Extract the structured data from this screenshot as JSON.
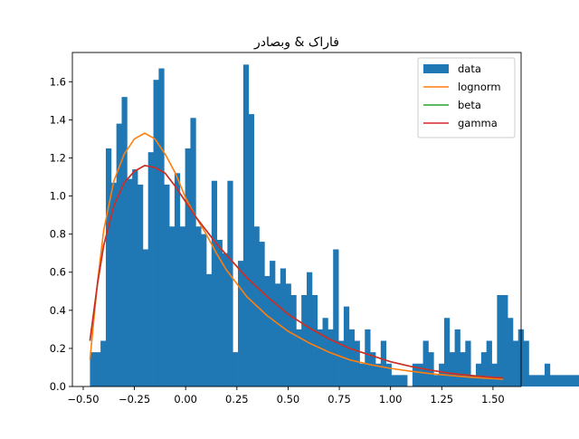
{
  "chart_data": {
    "type": "bar",
    "title": "فاراک & وبصادر",
    "xlabel": "",
    "ylabel": "",
    "xlim": [
      -0.5528,
      1.6372
    ],
    "ylim": [
      0,
      1.7535
    ],
    "xticks": [
      -0.5,
      -0.25,
      0.0,
      0.25,
      0.5,
      0.75,
      1.0,
      1.25,
      1.5
    ],
    "xtick_labels": [
      "−0.50",
      "−0.25",
      "0.00",
      "0.25",
      "0.50",
      "0.75",
      "1.00",
      "1.25",
      "1.50"
    ],
    "yticks": [
      0.0,
      0.2,
      0.4,
      0.6,
      0.8,
      1.0,
      1.2,
      1.4,
      1.6
    ],
    "ytick_labels": [
      "0.0",
      "0.2",
      "0.4",
      "0.6",
      "0.8",
      "1.0",
      "1.2",
      "1.4",
      "1.6"
    ],
    "grid": false,
    "legend_position": "top-right",
    "histogram": {
      "name": "data",
      "color": "#1f77b4",
      "bin_start": -0.467,
      "bin_width": 0.0258,
      "densities": [
        0.18,
        0.18,
        0.24,
        1.25,
        1.07,
        1.38,
        1.52,
        1.09,
        1.14,
        1.06,
        0.72,
        1.23,
        1.61,
        1.67,
        1.06,
        0.84,
        1.12,
        0.84,
        1.25,
        1.41,
        0.84,
        0.8,
        0.59,
        1.08,
        0.77,
        0.7,
        1.08,
        0.18,
        0.66,
        1.69,
        1.43,
        0.84,
        0.76,
        0.58,
        0.66,
        0.54,
        0.62,
        0.54,
        0.48,
        0.3,
        0.48,
        0.6,
        0.48,
        0.3,
        0.36,
        0.3,
        0.72,
        0.24,
        0.42,
        0.3,
        0.24,
        0.12,
        0.3,
        0.18,
        0.12,
        0.24,
        0.12,
        0.06,
        0.06,
        0.06,
        0.0,
        0.12,
        0.12,
        0.24,
        0.18,
        0.06,
        0.12,
        0.36,
        0.18,
        0.3,
        0.18,
        0.24,
        0.06,
        0.12,
        0.18,
        0.24,
        0.12,
        0.48,
        0.48,
        0.36,
        0.24,
        0.3,
        0.24,
        0.06,
        0.06,
        0.06,
        0.12,
        0.06,
        0.06,
        0.06,
        0.06,
        0.06,
        0.06,
        0.06,
        0.06,
        0.06
      ]
    },
    "series": [
      {
        "name": "lognorm",
        "color": "#ff7f0e",
        "x": [
          -0.467,
          -0.43,
          -0.4,
          -0.35,
          -0.3,
          -0.25,
          -0.2,
          -0.15,
          -0.1,
          -0.05,
          0.0,
          0.05,
          0.1,
          0.15,
          0.2,
          0.25,
          0.3,
          0.35,
          0.4,
          0.5,
          0.6,
          0.7,
          0.8,
          0.9,
          1.0,
          1.1,
          1.2,
          1.3,
          1.4,
          1.5,
          1.55
        ],
        "y": [
          0.14,
          0.55,
          0.82,
          1.08,
          1.22,
          1.3,
          1.33,
          1.3,
          1.22,
          1.12,
          0.99,
          0.89,
          0.8,
          0.7,
          0.61,
          0.54,
          0.47,
          0.42,
          0.37,
          0.29,
          0.23,
          0.18,
          0.14,
          0.115,
          0.095,
          0.08,
          0.067,
          0.057,
          0.048,
          0.041,
          0.038
        ]
      },
      {
        "name": "beta",
        "color": "#2ca02c",
        "x": [
          -0.467,
          -0.43,
          -0.4,
          -0.35,
          -0.3,
          -0.25,
          -0.2,
          -0.15,
          -0.1,
          -0.05,
          0.0,
          0.05,
          0.1,
          0.15,
          0.2,
          0.25,
          0.3,
          0.35,
          0.4,
          0.5,
          0.6,
          0.7,
          0.8,
          0.9,
          1.0,
          1.1,
          1.2,
          1.3,
          1.4,
          1.5,
          1.55
        ],
        "y": [
          0.24,
          0.54,
          0.74,
          0.95,
          1.07,
          1.13,
          1.16,
          1.15,
          1.12,
          1.05,
          0.97,
          0.89,
          0.82,
          0.75,
          0.69,
          0.63,
          0.57,
          0.52,
          0.47,
          0.38,
          0.31,
          0.25,
          0.2,
          0.165,
          0.13,
          0.105,
          0.085,
          0.068,
          0.057,
          0.048,
          0.045
        ]
      },
      {
        "name": "gamma",
        "color": "#d62728",
        "x": [
          -0.467,
          -0.43,
          -0.4,
          -0.35,
          -0.3,
          -0.25,
          -0.2,
          -0.15,
          -0.1,
          -0.05,
          0.0,
          0.05,
          0.1,
          0.15,
          0.2,
          0.25,
          0.3,
          0.35,
          0.4,
          0.5,
          0.6,
          0.7,
          0.8,
          0.9,
          1.0,
          1.1,
          1.2,
          1.3,
          1.4,
          1.5,
          1.55
        ],
        "y": [
          0.24,
          0.54,
          0.74,
          0.95,
          1.07,
          1.13,
          1.16,
          1.15,
          1.12,
          1.05,
          0.97,
          0.89,
          0.82,
          0.75,
          0.69,
          0.63,
          0.57,
          0.52,
          0.47,
          0.38,
          0.31,
          0.25,
          0.2,
          0.165,
          0.13,
          0.105,
          0.085,
          0.068,
          0.057,
          0.048,
          0.045
        ]
      }
    ],
    "legend": [
      "data",
      "lognorm",
      "beta",
      "gamma"
    ]
  }
}
